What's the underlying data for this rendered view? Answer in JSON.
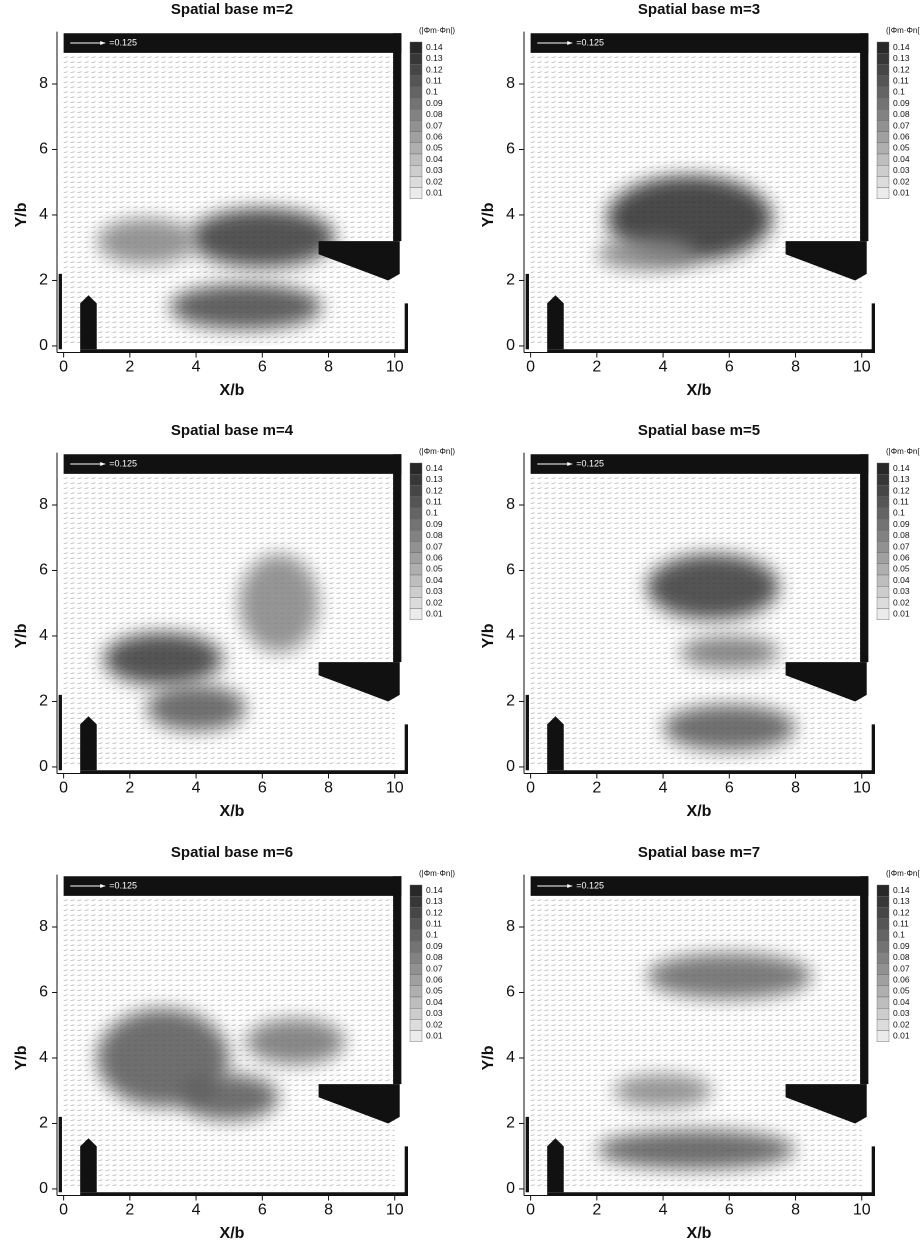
{
  "chart_data": [
    {
      "type": "vector-field",
      "title": "Spatial base m=2",
      "xlabel": "X/b",
      "ylabel": "Y/b",
      "xlim": [
        -0.2,
        10.4
      ],
      "ylim": [
        -0.2,
        9.6
      ],
      "xticks": [
        0,
        2,
        4,
        6,
        8,
        10
      ],
      "yticks": [
        0,
        2,
        4,
        6,
        8
      ],
      "reference_vector": {
        "value": 0.125,
        "label": "=0.125"
      },
      "colorbar": {
        "label": "(|Φm·Φn|)",
        "ticks": [
          0.14,
          0.13,
          0.12,
          0.11,
          0.1,
          0.09,
          0.08,
          0.07,
          0.06,
          0.05,
          0.04,
          0.03,
          0.02,
          0.01
        ]
      },
      "regions": [
        {
          "x": 6,
          "y": 3.3,
          "rx": 2.2,
          "ry": 0.9,
          "value": 0.13
        },
        {
          "x": 5.5,
          "y": 1.2,
          "rx": 2.3,
          "ry": 0.7,
          "value": 0.12
        },
        {
          "x": 2.5,
          "y": 3.2,
          "rx": 1.5,
          "ry": 0.7,
          "value": 0.08
        }
      ]
    },
    {
      "type": "vector-field",
      "title": "Spatial base m=3",
      "xlabel": "X/b",
      "ylabel": "Y/b",
      "xlim": [
        -0.2,
        10.4
      ],
      "ylim": [
        -0.2,
        9.6
      ],
      "xticks": [
        0,
        2,
        4,
        6,
        8,
        10
      ],
      "yticks": [
        0,
        2,
        4,
        6,
        8
      ],
      "reference_vector": {
        "value": 0.125,
        "label": "=0.125"
      },
      "colorbar": {
        "label": "(|Φm·Φn|)",
        "ticks": [
          0.14,
          0.13,
          0.12,
          0.11,
          0.1,
          0.09,
          0.08,
          0.07,
          0.06,
          0.05,
          0.04,
          0.03,
          0.02,
          0.01
        ]
      },
      "regions": [
        {
          "x": 4.8,
          "y": 3.9,
          "rx": 2.5,
          "ry": 1.3,
          "value": 0.14
        },
        {
          "x": 3.5,
          "y": 2.8,
          "rx": 1.5,
          "ry": 0.5,
          "value": 0.08
        }
      ]
    },
    {
      "type": "vector-field",
      "title": "Spatial base m=4",
      "xlabel": "X/b",
      "ylabel": "Y/b",
      "xlim": [
        -0.2,
        10.4
      ],
      "ylim": [
        -0.2,
        9.6
      ],
      "xticks": [
        0,
        2,
        4,
        6,
        8,
        10
      ],
      "yticks": [
        0,
        2,
        4,
        6,
        8
      ],
      "reference_vector": {
        "value": 0.125,
        "label": "=0.125"
      },
      "colorbar": {
        "label": "(|Φm·Φn|)",
        "ticks": [
          0.14,
          0.13,
          0.12,
          0.11,
          0.1,
          0.09,
          0.08,
          0.07,
          0.06,
          0.05,
          0.04,
          0.03,
          0.02,
          0.01
        ]
      },
      "regions": [
        {
          "x": 3,
          "y": 3.3,
          "rx": 1.8,
          "ry": 0.8,
          "value": 0.13
        },
        {
          "x": 4,
          "y": 1.8,
          "rx": 1.5,
          "ry": 0.7,
          "value": 0.11
        },
        {
          "x": 6.5,
          "y": 5,
          "rx": 1.2,
          "ry": 1.5,
          "value": 0.08
        }
      ]
    },
    {
      "type": "vector-field",
      "title": "Spatial base m=5",
      "xlabel": "X/b",
      "ylabel": "Y/b",
      "xlim": [
        -0.2,
        10.4
      ],
      "ylim": [
        -0.2,
        9.6
      ],
      "xticks": [
        0,
        2,
        4,
        6,
        8,
        10
      ],
      "yticks": [
        0,
        2,
        4,
        6,
        8
      ],
      "reference_vector": {
        "value": 0.125,
        "label": "=0.125"
      },
      "colorbar": {
        "label": "(|Φm·Φn|)",
        "ticks": [
          0.14,
          0.13,
          0.12,
          0.11,
          0.1,
          0.09,
          0.08,
          0.07,
          0.06,
          0.05,
          0.04,
          0.03,
          0.02,
          0.01
        ]
      },
      "regions": [
        {
          "x": 5.5,
          "y": 5.5,
          "rx": 2,
          "ry": 1,
          "value": 0.13
        },
        {
          "x": 6,
          "y": 1.2,
          "rx": 2,
          "ry": 0.7,
          "value": 0.11
        },
        {
          "x": 6,
          "y": 3.5,
          "rx": 1.5,
          "ry": 0.5,
          "value": 0.09
        }
      ]
    },
    {
      "type": "vector-field",
      "title": "Spatial base m=6",
      "xlabel": "X/b",
      "ylabel": "Y/b",
      "xlim": [
        -0.2,
        10.4
      ],
      "ylim": [
        -0.2,
        9.6
      ],
      "xticks": [
        0,
        2,
        4,
        6,
        8,
        10
      ],
      "yticks": [
        0,
        2,
        4,
        6,
        8
      ],
      "reference_vector": {
        "value": 0.125,
        "label": "=0.125"
      },
      "colorbar": {
        "label": "(|Φm·Φn|)",
        "ticks": [
          0.14,
          0.13,
          0.12,
          0.11,
          0.1,
          0.09,
          0.08,
          0.07,
          0.06,
          0.05,
          0.04,
          0.03,
          0.02,
          0.01
        ]
      },
      "regions": [
        {
          "x": 3,
          "y": 4,
          "rx": 2,
          "ry": 1.5,
          "value": 0.11
        },
        {
          "x": 5,
          "y": 2.8,
          "rx": 1.5,
          "ry": 0.7,
          "value": 0.11
        },
        {
          "x": 7,
          "y": 4.5,
          "rx": 1.5,
          "ry": 0.7,
          "value": 0.09
        }
      ]
    },
    {
      "type": "vector-field",
      "title": "Spatial base m=7",
      "xlabel": "X/b",
      "ylabel": "Y/b",
      "xlim": [
        -0.2,
        10.4
      ],
      "ylim": [
        -0.2,
        9.6
      ],
      "xticks": [
        0,
        2,
        4,
        6,
        8,
        10
      ],
      "yticks": [
        0,
        2,
        4,
        6,
        8
      ],
      "reference_vector": {
        "value": 0.125,
        "label": "=0.125"
      },
      "colorbar": {
        "label": "(|Φm·Φn|)",
        "ticks": [
          0.14,
          0.13,
          0.12,
          0.11,
          0.1,
          0.09,
          0.08,
          0.07,
          0.06,
          0.05,
          0.04,
          0.03,
          0.02,
          0.01
        ]
      },
      "regions": [
        {
          "x": 6,
          "y": 6.5,
          "rx": 2.5,
          "ry": 0.7,
          "value": 0.1
        },
        {
          "x": 5,
          "y": 1.2,
          "rx": 3,
          "ry": 0.6,
          "value": 0.11
        },
        {
          "x": 4,
          "y": 3,
          "rx": 1.5,
          "ry": 0.5,
          "value": 0.08
        }
      ]
    }
  ]
}
